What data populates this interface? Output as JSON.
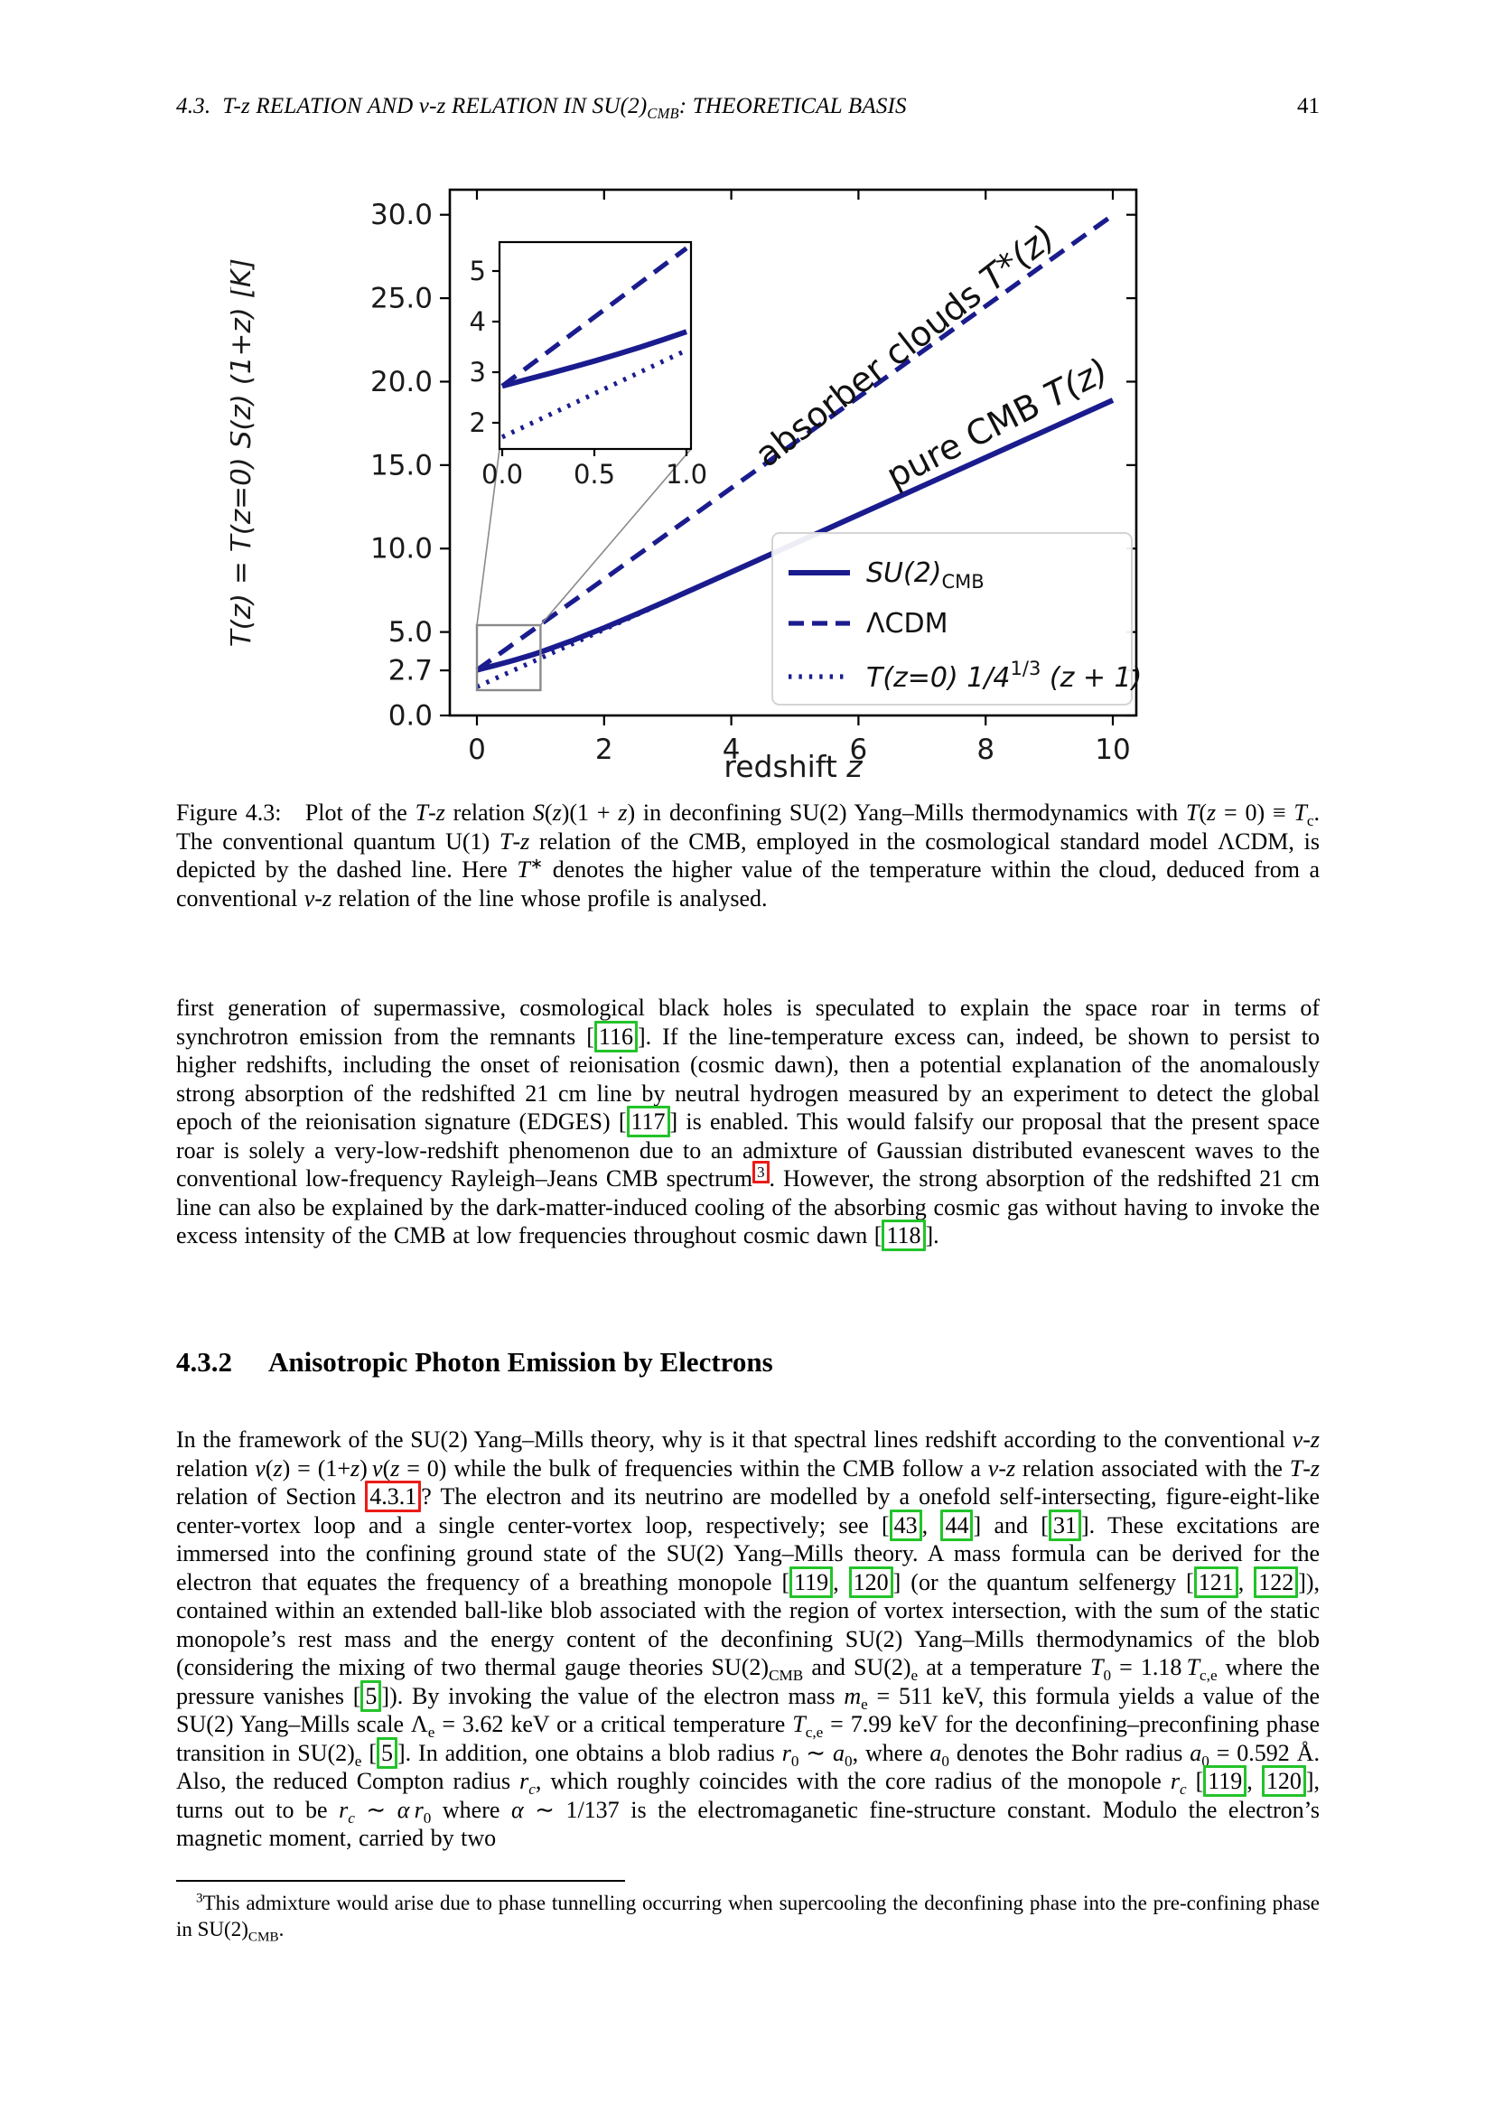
{
  "header": {
    "title_html": "4.3. &nbsp;<i>T</i>-<i>z</i> RELATION AND <i>ν</i>-<i>z</i> RELATION IN SU(2)<sub>CMB</sub>: THEORETICAL BASIS",
    "page_number": "41"
  },
  "chart_data": {
    "type": "line",
    "line_color": "#1a1c8e",
    "xlabel_word": "redshift ",
    "xlabel_var": "z",
    "ylabel": "T(z) = T(z=0) S(z) (1+z) [K]",
    "xlim": [
      -0.43,
      10.37
    ],
    "ylim": [
      0,
      31.5
    ],
    "grid": false,
    "x_ticks": {
      "values": [
        0,
        2,
        4,
        6,
        8,
        10
      ],
      "labels": [
        "0",
        "2",
        "4",
        "6",
        "8",
        "10"
      ]
    },
    "y_ticks": {
      "values": [
        0,
        2.7,
        5,
        10,
        15,
        20,
        25,
        30
      ],
      "labels": [
        "0.0",
        "2.7",
        "5.0",
        "10.0",
        "15.0",
        "20.0",
        "25.0",
        "30.0"
      ]
    },
    "series": [
      {
        "name": "LCDM",
        "style": "dashed",
        "points": [
          [
            0,
            2.725
          ],
          [
            0.5,
            4.0875
          ],
          [
            1,
            5.45
          ],
          [
            2,
            8.175
          ],
          [
            4,
            13.625
          ],
          [
            6,
            19.075
          ],
          [
            8,
            24.525
          ],
          [
            10,
            29.975
          ]
        ]
      },
      {
        "name": "T(z=0) 1/4^(1/3) (z+1)",
        "style": "dotted",
        "points": [
          [
            0,
            1.717
          ],
          [
            0.5,
            2.575
          ],
          [
            1,
            3.434
          ],
          [
            2,
            5.151
          ],
          [
            4,
            8.585
          ],
          [
            6,
            12.019
          ],
          [
            8,
            15.453
          ],
          [
            10,
            18.887
          ]
        ]
      },
      {
        "name": "SU(2)_CMB",
        "style": "solid",
        "points": [
          [
            0,
            2.725
          ],
          [
            0.125,
            2.848
          ],
          [
            0.25,
            2.968
          ],
          [
            0.375,
            3.092
          ],
          [
            0.5,
            3.22
          ],
          [
            0.625,
            3.355
          ],
          [
            0.75,
            3.496
          ],
          [
            0.875,
            3.645
          ],
          [
            1,
            3.8
          ],
          [
            1.5,
            4.487
          ],
          [
            2,
            5.251
          ],
          [
            2.5,
            6.059
          ],
          [
            3,
            6.892
          ],
          [
            4,
            8.59
          ],
          [
            5,
            10.303
          ],
          [
            6,
            12.019
          ],
          [
            7,
            13.736
          ],
          [
            8,
            15.453
          ],
          [
            9,
            17.17
          ],
          [
            10,
            18.887
          ]
        ]
      }
    ],
    "inset": {
      "xlim": [
        0,
        1
      ],
      "ylim": [
        1.48,
        5.57
      ],
      "x_ticks": {
        "values": [
          0,
          0.5,
          1
        ],
        "labels": [
          "0.0",
          "0.5",
          "1.0"
        ]
      },
      "y_ticks": {
        "values": [
          2,
          3,
          4,
          5
        ],
        "labels": [
          "2",
          "3",
          "4",
          "5"
        ]
      }
    },
    "zoom_box": {
      "x0": 0,
      "x1": 1,
      "y0": 1.5,
      "y1": 5.4
    },
    "annotations": [
      {
        "prefix": "absorber clouds ",
        "math": "T*(z)",
        "rotation": -38
      },
      {
        "prefix": "pure CMB ",
        "math": "T(z)",
        "rotation": -27
      }
    ],
    "legend": {
      "position": "center right",
      "e1a": "SU(2)",
      "e1b": "CMB",
      "e2": "ΛCDM",
      "e3a": "T(z=0) 1/4",
      "e3b": "1/3",
      "e3c": " (z + 1)"
    }
  },
  "caption": {
    "html": "Figure 4.3: &nbsp;&nbsp;Plot of the <i>T</i>-<i>z</i> relation <i>S</i>(<i>z</i>)(1 + <i>z</i>) in deconfining SU(2) Yang–Mills thermodynamics with <i>T</i>(<i>z</i> = 0) ≡ <i>T</i><sub>c</sub>. The conventional quantum U(1) <i>T</i>-<i>z</i> relation of the CMB, employed in the cosmological standard model ΛCDM, is depicted by the dashed line. Here <i>T</i><sup>∗</sup> denotes the higher value of the temperature within the cloud, deduced from a conventional <i>ν</i>-<i>z</i> relation of the line whose profile is analysed."
  },
  "paragraphs": [
    {
      "html": "first generation of supermassive, cosmological black holes is speculated to explain the space roar in terms of synchrotron emission from the remnants [<span class='cg' data-name='citation-116' data-interactable='true'>116</span>]. If the line-temperature excess can, indeed, be shown to persist to higher redshifts, including the onset of reionisation (cosmic dawn), then a potential explanation of the anomalously strong absorption of the redshifted 21 cm line by neutral hydrogen measured by an experiment to detect the global epoch of the reionisation signature (EDGES) [<span class='cg' data-name='citation-117' data-interactable='true'>117</span>] is enabled. This would falsify our proposal that the present space roar is solely a very-low-redshift phenomenon due to an admixture of Gaussian distributed evanescent waves to the conventional low-frequency Rayleigh–Jeans CMB spectrum<sup><span class='cr' data-name='footnote-ref-3' data-interactable='true'>3</span></sup>. However, the strong absorption of the redshifted 21 cm line can also be explained by the dark-matter-induced cooling of the absorbing cosmic gas without having to invoke the excess intensity of the CMB at low frequencies throughout cosmic dawn [<span class='cg' data-name='citation-118' data-interactable='true'>118</span>]."
    },
    {
      "html": "In the framework of the SU(2) Yang–Mills theory, why is it that spectral lines redshift according to the conventional <i>ν</i>-<i>z</i> relation <i>ν</i>(<i>z</i>) = (1+<i>z</i>) <i>ν</i>(<i>z</i> = 0) while the bulk of frequencies within the CMB follow a <i>ν</i>-<i>z</i> relation associated with the <i>T</i>-<i>z</i> relation of Section <span class='cr' data-name='section-link-4-3-1' data-interactable='true'>4.3.1</span>? The electron and its neutrino are modelled by a onefold self-intersecting, figure-eight-like center-vortex loop and a single center-vortex loop, respectively; see [<span class='cg' data-name='citation-43' data-interactable='true'>43</span>, <span class='cg' data-name='citation-44' data-interactable='true'>44</span>] and [<span class='cg' data-name='citation-31' data-interactable='true'>31</span>]. These excitations are immersed into the confining ground state of the SU(2) Yang–Mills theory. A mass formula can be derived for the electron that equates the frequency of a breathing monopole [<span class='cg' data-name='citation-119' data-interactable='true'>119</span>, <span class='cg' data-name='citation-120' data-interactable='true'>120</span>] (or the quantum selfenergy [<span class='cg' data-name='citation-121' data-interactable='true'>121</span>, <span class='cg' data-name='citation-122' data-interactable='true'>122</span>]), contained within an extended ball-like blob associated with the region of vortex intersection, with the sum of the static monopole’s rest mass and the energy content of the deconfining SU(2) Yang–Mills thermodynamics of the blob (considering the mixing of two thermal gauge theories SU(2)<sub>CMB</sub> and SU(2)<sub>e</sub> at a temperature <i>T</i><sub>0</sub> = 1.18 <i>T</i><sub>c,e</sub> where the pressure vanishes [<span class='cg' data-name='citation-5' data-interactable='true'>5</span>]). By invoking the value of the electron mass <i>m</i><sub>e</sub> = 511 keV, this formula yields a value of the SU(2) Yang–Mills scale Λ<sub>e</sub> = 3.62 keV or a critical temperature <i>T</i><sub>c,e</sub> = 7.99 keV for the deconfining–preconfining phase transition in SU(2)<sub>e</sub> [<span class='cg' data-name='citation-5b' data-interactable='true'>5</span>]. In addition, one obtains a blob radius <i>r</i><sub>0</sub> ∼ <i>a</i><sub>0</sub>, where <i>a</i><sub>0</sub> denotes the Bohr radius <i>a</i><sub>0</sub> = 0.592 Å. Also, the reduced Compton radius <i>r<sub>c</sub></i>, which roughly coincides with the core radius of the monopole <i>r<sub>c</sub></i> [<span class='cg' data-name='citation-119b' data-interactable='true'>119</span>, <span class='cg' data-name='citation-120b' data-interactable='true'>120</span>], turns out to be <i>r<sub>c</sub></i> ∼ <i>α</i> <i>r</i><sub>0</sub> where <i>α</i> ∼ 1/137 is the electromaganetic fine-structure constant. Modulo the electron’s magnetic moment, carried by two"
    }
  ],
  "section_heading": {
    "number": "4.3.2",
    "title": "Anisotropic Photon Emission by Electrons"
  },
  "footnote": {
    "html": "<sup>3</sup>This admixture would arise due to phase tunnelling occurring when supercooling the deconfining phase into the pre-confining phase in SU(2)<sub>CMB</sub>."
  }
}
